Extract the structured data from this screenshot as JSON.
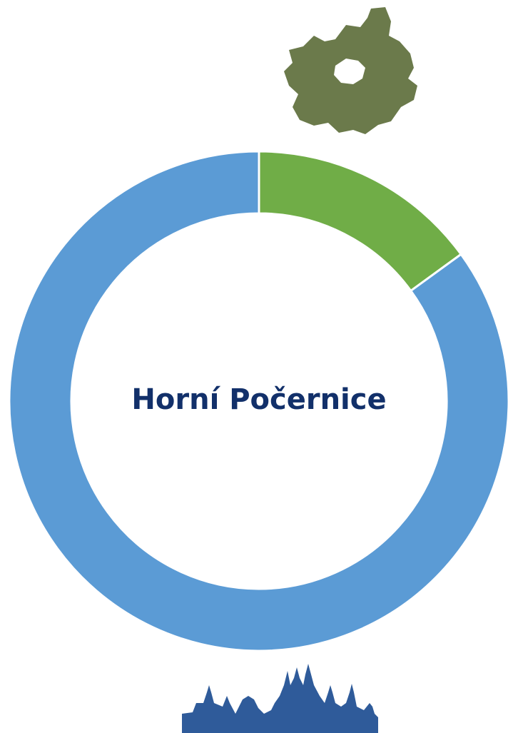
{
  "chart_data": {
    "type": "donut",
    "title": "Horní Počernice",
    "values": [
      15,
      85
    ],
    "colors": [
      "#70ad47",
      "#5b9bd5"
    ]
  }
}
